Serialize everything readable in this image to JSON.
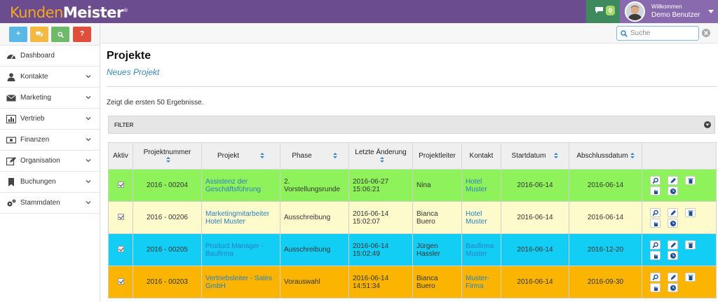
{
  "app": {
    "logo_first": "Kunden",
    "logo_second": "Meister",
    "logo_mark": "®",
    "message_count": "0",
    "user_welcome": "Willkommen",
    "user_name": "Demo Benutzer"
  },
  "colors": {
    "topbar": "#6b4c8e",
    "accent_link": "#2a7fc0",
    "row_green": "#8ef25a",
    "row_yellow": "#fdfbcc",
    "row_cyan": "#12cdf4",
    "row_orange": "#fbb500"
  },
  "quick_buttons": [
    {
      "label": "+",
      "icon": "plus-icon"
    },
    {
      "label": "",
      "icon": "chat-icon"
    },
    {
      "label": "",
      "icon": "search-icon"
    },
    {
      "label": "?",
      "icon": "help-icon"
    }
  ],
  "sidebar": {
    "items": [
      {
        "label": "Dashboard",
        "icon": "dashboard-icon",
        "expandable": false
      },
      {
        "label": "Kontakte",
        "icon": "user-icon",
        "expandable": true
      },
      {
        "label": "Marketing",
        "icon": "envelope-icon",
        "expandable": true
      },
      {
        "label": "Vertrieb",
        "icon": "bar-chart-icon",
        "expandable": true
      },
      {
        "label": "Finanzen",
        "icon": "money-icon",
        "expandable": true
      },
      {
        "label": "Organisation",
        "icon": "edit-icon",
        "expandable": true
      },
      {
        "label": "Buchungen",
        "icon": "bookmark-icon",
        "expandable": true
      },
      {
        "label": "Stammdaten",
        "icon": "cogs-icon",
        "expandable": true
      }
    ]
  },
  "search": {
    "placeholder": "Suche",
    "value": ""
  },
  "main": {
    "title": "Projekte",
    "new_link": "Neues Projekt",
    "results_text": "Zeigt die ersten 50 Ergebnisse.",
    "filter_label": "FILTER"
  },
  "table": {
    "columns": [
      "Aktiv",
      "Projektnummer",
      "Projekt",
      "Phase",
      "Letzte Änderung",
      "Projektleiter",
      "Kontakt",
      "Startdatum",
      "Abschlussdatum"
    ],
    "rows": [
      {
        "aktiv": true,
        "nummer": "2016 - 00204",
        "projekt": "Assistenz der Geschäftsführung",
        "phase": "2. Vorstellungsrunde",
        "aenderung": "2016-06-27 15:06:21",
        "leiter": "Nina",
        "kontakt": "Hotel Muster",
        "start": "2016-06-14",
        "ende": "2016-06-14",
        "color": "#8ef25a"
      },
      {
        "aktiv": true,
        "nummer": "2016 - 00206",
        "projekt": "Marketingmitarbeiter Hotel Muster",
        "phase": "Ausschreibung",
        "aenderung": "2016-06-14 15:02:07",
        "leiter": "Bianca Buero",
        "kontakt": "Hotel Muster",
        "start": "2016-06-14",
        "ende": "2016-06-14",
        "color": "#fdfbcc"
      },
      {
        "aktiv": true,
        "nummer": "2016 - 00205",
        "projekt": "Product Manager - Baufirma",
        "phase": "Ausschreibung",
        "aenderung": "2016-06-14 15:02:49",
        "leiter": "Jürgen Hassler",
        "kontakt": "Baufirma Muster",
        "start": "2016-06-14",
        "ende": "2016-12-20",
        "color": "#12cdf4"
      },
      {
        "aktiv": true,
        "nummer": "2016 - 00203",
        "projekt": "Vertriebsleiter - Sales GmbH",
        "phase": "Vorauswahl",
        "aenderung": "2016-06-14 14:51:34",
        "leiter": "Bianca Buero",
        "kontakt": "Muster-Firma",
        "start": "2016-06-14",
        "ende": "2016-09-30",
        "color": "#fbb500"
      }
    ],
    "row_actions": [
      "view-icon",
      "edit-icon",
      "delete-icon",
      "hand-icon",
      "clock-icon"
    ]
  }
}
